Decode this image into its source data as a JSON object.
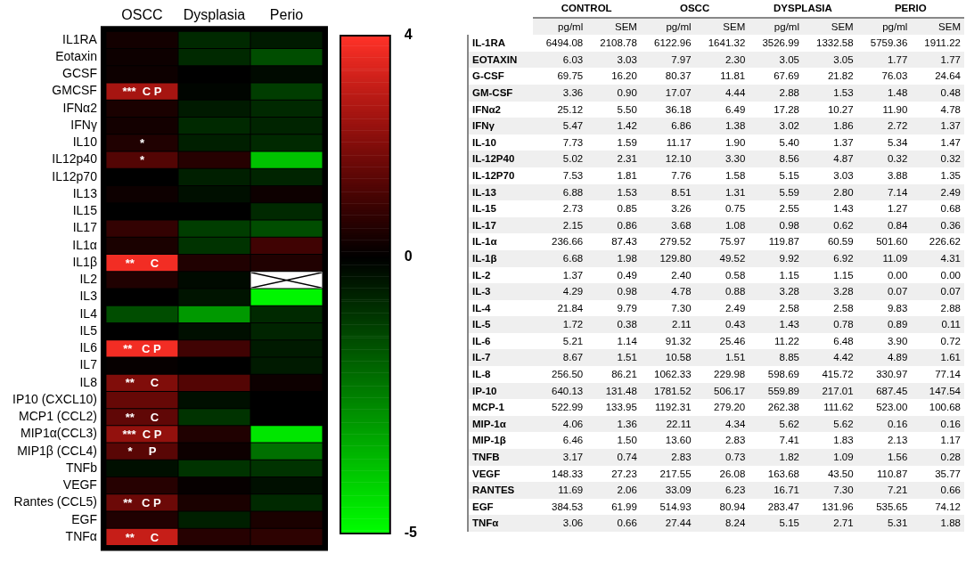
{
  "chart_data": [
    {
      "type": "heatmap",
      "categories": [
        "OSCC",
        "Dysplasia",
        "Perio"
      ],
      "y_categories": [
        "IL1RA",
        "Eotaxin",
        "GCSF",
        "GMCSF",
        "IFNα2",
        "IFNγ",
        "IL10",
        "IL12p40",
        "IL12p70",
        "IL13",
        "IL15",
        "IL17",
        "IL1α",
        "IL1β",
        "IL2",
        "IL3",
        "IL4",
        "IL5",
        "IL6",
        "IL7",
        "IL8",
        "IP10 (CXCL10)",
        "MCP1 (CCL2)",
        "MIP1α(CCL3)",
        "MIP1β (CCL4)",
        "TNFb",
        "VEGF",
        "Rantes (CCL5)",
        "EGF",
        "TNFα"
      ],
      "cells": [
        [
          0.3,
          -0.8,
          -0.5
        ],
        [
          0.2,
          -0.8,
          -1.5
        ],
        [
          0.2,
          0,
          -0.2
        ],
        [
          2.6,
          -0.1,
          -1.2
        ],
        [
          0.4,
          -0.5,
          -0.8
        ],
        [
          0.3,
          -0.8,
          -0.7
        ],
        [
          0.5,
          -0.6,
          -0.8
        ],
        [
          1.3,
          0.6,
          -3.8
        ],
        [
          0,
          -0.6,
          -0.7
        ],
        [
          0.2,
          -0.3,
          0.2
        ],
        [
          0,
          0,
          -0.8
        ],
        [
          0.8,
          -1.2,
          -1.5
        ],
        [
          0.4,
          -1,
          1
        ],
        [
          3.8,
          0.5,
          0.5
        ],
        [
          0.5,
          -0.2,
          null
        ],
        [
          0,
          -0.4,
          -4.8
        ],
        [
          -1.5,
          -3,
          -0.8
        ],
        [
          0,
          -0.3,
          -0.7
        ],
        [
          3.8,
          1,
          -0.5
        ],
        [
          0.1,
          0,
          -0.5
        ],
        [
          2,
          1.3,
          0.2
        ],
        [
          1.6,
          -0.3,
          0
        ],
        [
          1.5,
          -1,
          0
        ],
        [
          2.3,
          0.5,
          -4.5
        ],
        [
          1.4,
          0.2,
          -2.2
        ],
        [
          -0.3,
          -1,
          -1
        ],
        [
          0.6,
          0.1,
          -0.3
        ],
        [
          1.7,
          0.4,
          -0.8
        ],
        [
          0.5,
          -0.6,
          0.4
        ],
        [
          3.1,
          0.6,
          0.7
        ]
      ],
      "cell_labels": [
        [
          null,
          null,
          null
        ],
        [
          null,
          null,
          null
        ],
        [
          null,
          null,
          null
        ],
        [
          "***  C P",
          null,
          null
        ],
        [
          null,
          null,
          null
        ],
        [
          null,
          null,
          null
        ],
        [
          "*",
          null,
          null
        ],
        [
          "*",
          null,
          null
        ],
        [
          null,
          null,
          null
        ],
        [
          null,
          null,
          null
        ],
        [
          null,
          null,
          null
        ],
        [
          null,
          null,
          null
        ],
        [
          null,
          null,
          null
        ],
        [
          "**     C",
          null,
          null
        ],
        [
          null,
          null,
          null
        ],
        [
          null,
          null,
          null
        ],
        [
          null,
          null,
          null
        ],
        [
          null,
          null,
          null
        ],
        [
          "**   C P",
          null,
          null
        ],
        [
          null,
          null,
          null
        ],
        [
          "**     C",
          null,
          null
        ],
        [
          null,
          null,
          null
        ],
        [
          "**     C",
          null,
          null
        ],
        [
          "***  C P",
          null,
          null
        ],
        [
          "*     P",
          null,
          null
        ],
        [
          null,
          null,
          null
        ],
        [
          null,
          null,
          null
        ],
        [
          "**   C P",
          null,
          null
        ],
        [
          null,
          null,
          null
        ],
        [
          "**     C",
          null,
          null
        ]
      ],
      "clim": [
        -5,
        4
      ],
      "cticks": [
        -5,
        0,
        4
      ]
    },
    {
      "type": "other",
      "annotations": [
        "CONTROL",
        "OSCC",
        "DYSPLASIA",
        "PERIO"
      ],
      "categories": [
        "pg/ml",
        "SEM",
        "pg/ml",
        "SEM",
        "pg/ml",
        "SEM",
        "pg/ml",
        "SEM"
      ],
      "y_categories": [
        "IL-1RA",
        "EOTAXIN",
        "G-CSF",
        "GM-CSF",
        "IFNα2",
        "IFNγ",
        "IL-10",
        "IL-12P40",
        "IL-12P70",
        "IL-13",
        "IL-15",
        "IL-17",
        "IL-1α",
        "IL-1β",
        "IL-2",
        "IL-3",
        "IL-4",
        "IL-5",
        "IL-6",
        "IL-7",
        "IL-8",
        "IP-10",
        "MCP-1",
        "MIP-1α",
        "MIP-1β",
        "TNFB",
        "VEGF",
        "RANTES",
        "EGF",
        "TNFα"
      ],
      "cell_labels": [
        [
          "6494.08",
          "2108.78",
          "6122.96",
          "1641.32",
          "3526.99",
          "1332.58",
          "5759.36",
          "1911.22"
        ],
        [
          "6.03",
          "3.03",
          "7.97",
          "2.30",
          "3.05",
          "3.05",
          "1.77",
          "1.77"
        ],
        [
          "69.75",
          "16.20",
          "80.37",
          "11.81",
          "67.69",
          "21.82",
          "76.03",
          "24.64"
        ],
        [
          "3.36",
          "0.90",
          "17.07",
          "4.44",
          "2.88",
          "1.53",
          "1.48",
          "0.48"
        ],
        [
          "25.12",
          "5.50",
          "36.18",
          "6.49",
          "17.28",
          "10.27",
          "11.90",
          "4.78"
        ],
        [
          "5.47",
          "1.42",
          "6.86",
          "1.38",
          "3.02",
          "1.86",
          "2.72",
          "1.37"
        ],
        [
          "7.73",
          "1.59",
          "11.17",
          "1.90",
          "5.40",
          "1.37",
          "5.34",
          "1.47"
        ],
        [
          "5.02",
          "2.31",
          "12.10",
          "3.30",
          "8.56",
          "4.87",
          "0.32",
          "0.32"
        ],
        [
          "7.53",
          "1.81",
          "7.76",
          "1.58",
          "5.15",
          "3.03",
          "3.88",
          "1.35"
        ],
        [
          "6.88",
          "1.53",
          "8.51",
          "1.31",
          "5.59",
          "2.80",
          "7.14",
          "2.49"
        ],
        [
          "2.73",
          "0.85",
          "3.26",
          "0.75",
          "2.55",
          "1.43",
          "1.27",
          "0.68"
        ],
        [
          "2.15",
          "0.86",
          "3.68",
          "1.08",
          "0.98",
          "0.62",
          "0.84",
          "0.36"
        ],
        [
          "236.66",
          "87.43",
          "279.52",
          "75.97",
          "119.87",
          "60.59",
          "501.60",
          "226.62"
        ],
        [
          "6.68",
          "1.98",
          "129.80",
          "49.52",
          "9.92",
          "6.92",
          "11.09",
          "4.31"
        ],
        [
          "1.37",
          "0.49",
          "2.40",
          "0.58",
          "1.15",
          "1.15",
          "0.00",
          "0.00"
        ],
        [
          "4.29",
          "0.98",
          "4.78",
          "0.88",
          "3.28",
          "3.28",
          "0.07",
          "0.07"
        ],
        [
          "21.84",
          "9.79",
          "7.30",
          "2.49",
          "2.58",
          "2.58",
          "9.83",
          "2.88"
        ],
        [
          "1.72",
          "0.38",
          "2.11",
          "0.43",
          "1.43",
          "0.78",
          "0.89",
          "0.11"
        ],
        [
          "5.21",
          "1.14",
          "91.32",
          "25.46",
          "11.22",
          "6.48",
          "3.90",
          "0.72"
        ],
        [
          "8.67",
          "1.51",
          "10.58",
          "1.51",
          "8.85",
          "4.42",
          "4.89",
          "1.61"
        ],
        [
          "256.50",
          "86.21",
          "1062.33",
          "229.98",
          "598.69",
          "415.72",
          "330.97",
          "77.14"
        ],
        [
          "640.13",
          "131.48",
          "1781.52",
          "506.17",
          "559.89",
          "217.01",
          "687.45",
          "147.54"
        ],
        [
          "522.99",
          "133.95",
          "1192.31",
          "279.20",
          "262.38",
          "111.62",
          "523.00",
          "100.68"
        ],
        [
          "4.06",
          "1.36",
          "22.11",
          "4.34",
          "5.62",
          "5.62",
          "0.16",
          "0.16"
        ],
        [
          "6.46",
          "1.50",
          "13.60",
          "2.83",
          "7.41",
          "1.83",
          "2.13",
          "1.17"
        ],
        [
          "3.17",
          "0.74",
          "2.83",
          "0.73",
          "1.82",
          "1.09",
          "1.56",
          "0.28"
        ],
        [
          "148.33",
          "27.23",
          "217.55",
          "26.08",
          "163.68",
          "43.50",
          "110.87",
          "35.77"
        ],
        [
          "11.69",
          "2.06",
          "33.09",
          "6.23",
          "16.71",
          "7.30",
          "7.21",
          "0.66"
        ],
        [
          "384.53",
          "61.99",
          "514.93",
          "80.94",
          "283.47",
          "131.96",
          "535.65",
          "74.12"
        ],
        [
          "3.06",
          "0.66",
          "27.44",
          "8.24",
          "5.15",
          "2.71",
          "5.31",
          "1.88"
        ]
      ]
    }
  ]
}
